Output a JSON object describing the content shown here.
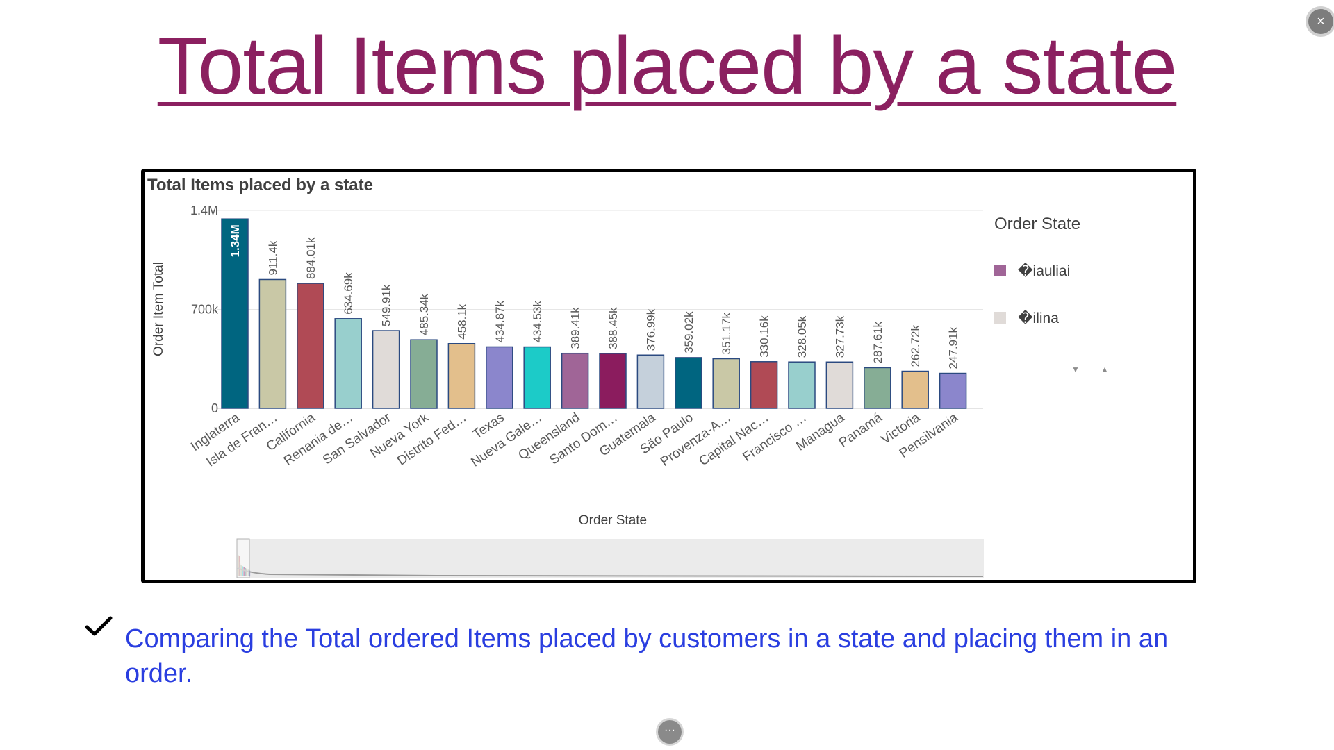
{
  "slide": {
    "title": "Total Items placed by a state",
    "title_color": "#8b2060",
    "caption": "Comparing the Total ordered Items placed by customers in a state and placing them in an order.",
    "caption_color": "#2a3ee0",
    "close_icon": "×",
    "more_icon": "···"
  },
  "chart_data": {
    "type": "bar",
    "title": "Total Items placed by a state",
    "xlabel": "Order State",
    "ylabel": "Order Item Total",
    "ylim": [
      0,
      1400000
    ],
    "yticks": [
      0,
      700000,
      1400000
    ],
    "ytick_labels": [
      "0",
      "700k",
      "1.4M"
    ],
    "grid": true,
    "categories": [
      "Inglaterra",
      "Isla de Fran…",
      "California",
      "Renania de…",
      "San Salvador",
      "Nueva York",
      "Distrito Fed…",
      "Texas",
      "Nueva Gale…",
      "Queensland",
      "Santo Dom…",
      "Guatemala",
      "São Paulo",
      "Provenza-A…",
      "Capital Nac…",
      "Francisco …",
      "Managua",
      "Panamá",
      "Victoria",
      "Pensilvania"
    ],
    "values": [
      1340000,
      911400,
      884010,
      634690,
      549910,
      485340,
      458100,
      434870,
      434530,
      389410,
      388450,
      376990,
      359020,
      351170,
      330160,
      328050,
      327730,
      287610,
      262720,
      247910
    ],
    "value_labels": [
      "1.34M",
      "911.4k",
      "884.01k",
      "634.69k",
      "549.91k",
      "485.34k",
      "458.1k",
      "434.87k",
      "434.53k",
      "389.41k",
      "388.45k",
      "376.99k",
      "359.02k",
      "351.17k",
      "330.16k",
      "328.05k",
      "327.73k",
      "287.61k",
      "262.72k",
      "247.91k"
    ],
    "colors": [
      "#006580",
      "#c9c8a6",
      "#b04a55",
      "#98cfcd",
      "#e0dbd8",
      "#86ad95",
      "#e3bf8c",
      "#8b86cc",
      "#1ccbc8",
      "#a06597",
      "#8b1c5e",
      "#c5d0db",
      "#006580",
      "#c9c8a6",
      "#b04a55",
      "#98cfcd",
      "#e0dbd8",
      "#86ad95",
      "#e3bf8c",
      "#8b86cc"
    ],
    "bar_border_color": "#2b4a80",
    "legend": {
      "title": "Order State",
      "placement": "right",
      "entries": [
        {
          "label": "�iauliai",
          "color": "#a06597"
        },
        {
          "label": "�ilina",
          "color": "#e0dbd8"
        }
      ],
      "scroll_down_icon": "▼",
      "scroll_up_icon": "▲"
    },
    "mini_chart": {
      "visible": true
    }
  }
}
